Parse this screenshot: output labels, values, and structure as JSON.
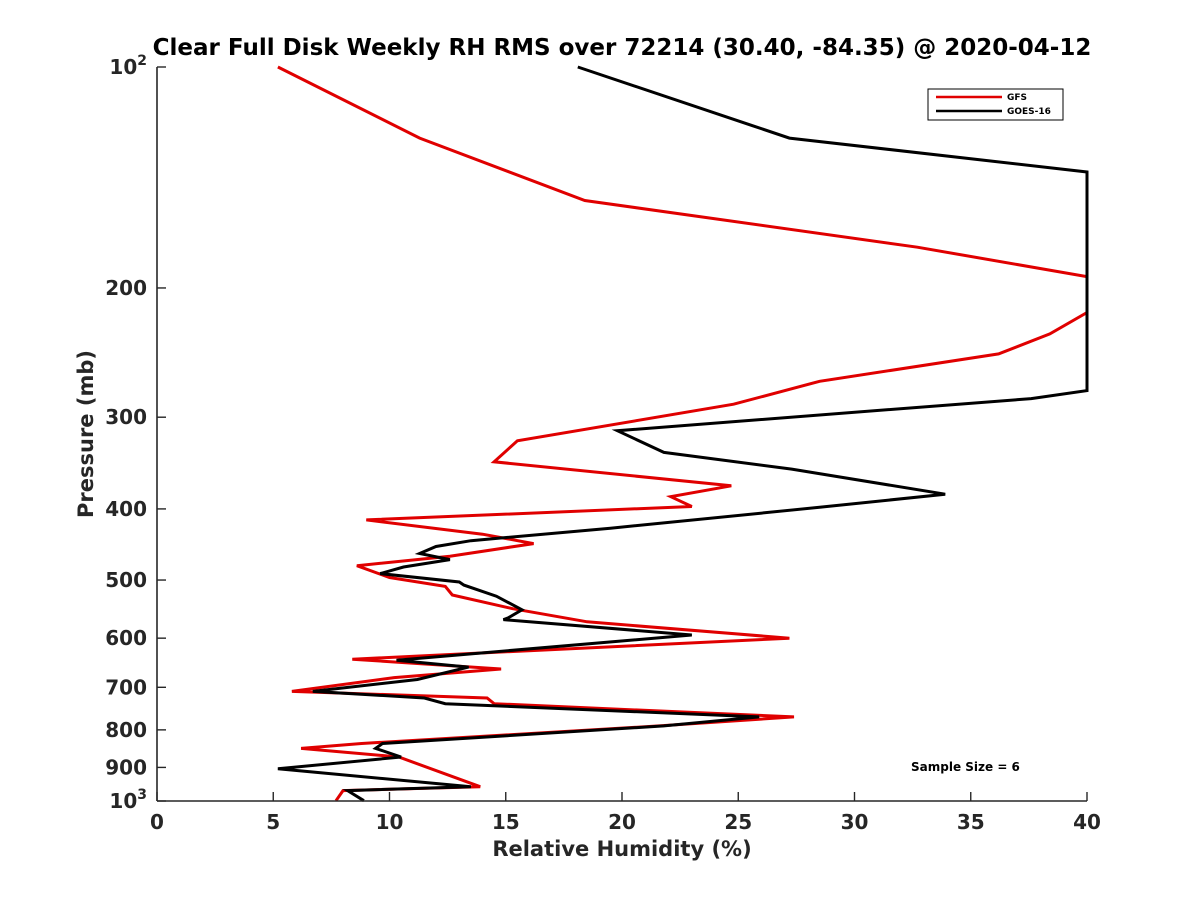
{
  "chart_data": {
    "type": "line",
    "title": "Clear Full Disk Weekly RH RMS over 72214 (30.40, -84.35) @ 2020-04-12",
    "xlabel": "Relative Humidity (%)",
    "ylabel": "Pressure (mb)",
    "xlim": [
      0,
      40
    ],
    "ylim": [
      100,
      1000
    ],
    "yscale": "log",
    "y_reversed": true,
    "grid": false,
    "legend_position": "top-right",
    "x_ticks": [
      0,
      5,
      10,
      15,
      20,
      25,
      30,
      35,
      40
    ],
    "y_ticks": [
      {
        "value": 100,
        "label": "10",
        "sup": "2"
      },
      {
        "value": 200,
        "label": "200",
        "sup": ""
      },
      {
        "value": 300,
        "label": "300",
        "sup": ""
      },
      {
        "value": 400,
        "label": "400",
        "sup": ""
      },
      {
        "value": 500,
        "label": "500",
        "sup": ""
      },
      {
        "value": 600,
        "label": "600",
        "sup": ""
      },
      {
        "value": 700,
        "label": "700",
        "sup": ""
      },
      {
        "value": 800,
        "label": "800",
        "sup": ""
      },
      {
        "value": 900,
        "label": "900",
        "sup": ""
      },
      {
        "value": 1000,
        "label": "10",
        "sup": "3"
      }
    ],
    "annotation": "Sample Size = 6",
    "series": [
      {
        "name": "GFS",
        "color": "#e00000",
        "points": [
          [
            5.2,
            100
          ],
          [
            11.3,
            125
          ],
          [
            18.4,
            152
          ],
          [
            32.7,
            176
          ],
          [
            40,
            193
          ],
          [
            40,
            216
          ],
          [
            38.4,
            231
          ],
          [
            36.2,
            246
          ],
          [
            28.5,
            268
          ],
          [
            24.8,
            288
          ],
          [
            15.5,
            323
          ],
          [
            14.5,
            345
          ],
          [
            24.7,
            372
          ],
          [
            22.1,
            385
          ],
          [
            23.0,
            397
          ],
          [
            9.0,
            414
          ],
          [
            14.0,
            433
          ],
          [
            16.2,
            446
          ],
          [
            12.6,
            464
          ],
          [
            8.6,
            478
          ],
          [
            10.0,
            496
          ],
          [
            12.4,
            510
          ],
          [
            12.7,
            524
          ],
          [
            15.3,
            547
          ],
          [
            18.5,
            570
          ],
          [
            27.2,
            600
          ],
          [
            8.4,
            641
          ],
          [
            14.8,
            661
          ],
          [
            10.2,
            679
          ],
          [
            5.8,
            709
          ],
          [
            14.2,
            724
          ],
          [
            14.5,
            737
          ],
          [
            27.4,
            768
          ],
          [
            21.6,
            790
          ],
          [
            8.8,
            835
          ],
          [
            6.2,
            848
          ],
          [
            10.4,
            871
          ],
          [
            13.9,
            956
          ],
          [
            8.0,
            968
          ],
          [
            7.7,
            999
          ]
        ]
      },
      {
        "name": "GOES-16",
        "color": "#000000",
        "points": [
          [
            18.1,
            100
          ],
          [
            27.2,
            125
          ],
          [
            40,
            139
          ],
          [
            40,
            276
          ],
          [
            37.6,
            283
          ],
          [
            19.8,
            313
          ],
          [
            21.8,
            335
          ],
          [
            27.3,
            353
          ],
          [
            33.9,
            382
          ],
          [
            28.5,
            398
          ],
          [
            19.5,
            425
          ],
          [
            13.5,
            442
          ],
          [
            12.0,
            450
          ],
          [
            11.3,
            460
          ],
          [
            12.6,
            469
          ],
          [
            10.6,
            480
          ],
          [
            9.6,
            490
          ],
          [
            13.0,
            503
          ],
          [
            13.2,
            508
          ],
          [
            14.6,
            526
          ],
          [
            15.7,
            549
          ],
          [
            15.1,
            563
          ],
          [
            14.9,
            566
          ],
          [
            23.0,
            594
          ],
          [
            10.3,
            643
          ],
          [
            13.4,
            657
          ],
          [
            11.2,
            683
          ],
          [
            6.7,
            709
          ],
          [
            11.5,
            724
          ],
          [
            12.4,
            737
          ],
          [
            25.9,
            768
          ],
          [
            21.8,
            790
          ],
          [
            9.7,
            835
          ],
          [
            9.4,
            848
          ],
          [
            10.5,
            871
          ],
          [
            5.2,
            904
          ],
          [
            13.5,
            956
          ],
          [
            8.2,
            968
          ],
          [
            8.9,
            999
          ]
        ]
      }
    ]
  }
}
